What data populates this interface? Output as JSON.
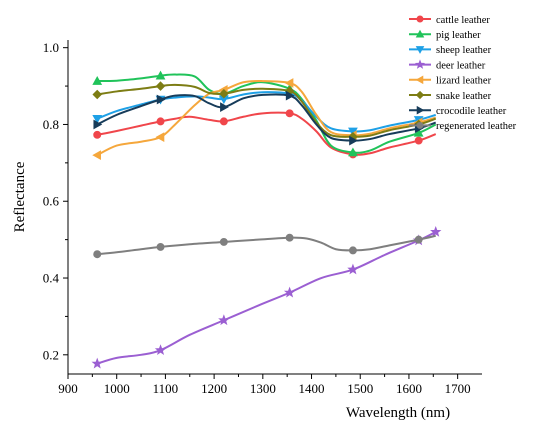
{
  "chart_data": {
    "type": "line",
    "title": "",
    "xlabel": "Wavelength (nm)",
    "ylabel": "Reflectance",
    "xlim": [
      900,
      1750
    ],
    "ylim": [
      0.15,
      1.02
    ],
    "xticks": [
      900,
      1000,
      1100,
      1200,
      1300,
      1400,
      1500,
      1600,
      1700
    ],
    "yticks": [
      0.2,
      0.4,
      0.6,
      0.8,
      1.0
    ],
    "ytick_labels": [
      "0.2",
      "0.4",
      "0.6",
      "0.8",
      "1.0"
    ],
    "grid": false,
    "legend_position": "top-right",
    "series": [
      {
        "name": "cattle leather",
        "color": "#f0464b",
        "marker": "circle",
        "x": [
          960,
          1000,
          1050,
          1090,
          1120,
          1150,
          1190,
          1220,
          1260,
          1300,
          1355,
          1380,
          1410,
          1440,
          1485,
          1520,
          1560,
          1620,
          1655
        ],
        "y": [
          0.773,
          0.783,
          0.797,
          0.808,
          0.815,
          0.82,
          0.812,
          0.808,
          0.82,
          0.829,
          0.829,
          0.815,
          0.782,
          0.74,
          0.722,
          0.725,
          0.74,
          0.758,
          0.775
        ],
        "markers_x": [
          960,
          1090,
          1220,
          1355,
          1485,
          1620
        ]
      },
      {
        "name": "pig leather",
        "color": "#20c35a",
        "marker": "triangle-up",
        "x": [
          960,
          1000,
          1050,
          1090,
          1120,
          1160,
          1190,
          1220,
          1260,
          1300,
          1355,
          1380,
          1410,
          1440,
          1485,
          1520,
          1560,
          1620,
          1655
        ],
        "y": [
          0.913,
          0.914,
          0.92,
          0.927,
          0.93,
          0.925,
          0.89,
          0.88,
          0.9,
          0.91,
          0.893,
          0.866,
          0.81,
          0.745,
          0.727,
          0.732,
          0.755,
          0.778,
          0.8
        ],
        "markers_x": [
          960,
          1090,
          1220,
          1355,
          1485,
          1620
        ]
      },
      {
        "name": "sheep leather",
        "color": "#1ea0e6",
        "marker": "triangle-down",
        "x": [
          960,
          1000,
          1050,
          1090,
          1120,
          1160,
          1190,
          1220,
          1260,
          1300,
          1355,
          1380,
          1410,
          1440,
          1485,
          1520,
          1560,
          1620,
          1655
        ],
        "y": [
          0.815,
          0.835,
          0.852,
          0.865,
          0.87,
          0.873,
          0.87,
          0.866,
          0.878,
          0.884,
          0.88,
          0.862,
          0.82,
          0.79,
          0.782,
          0.785,
          0.797,
          0.812,
          0.825
        ],
        "markers_x": [
          960,
          1090,
          1220,
          1355,
          1485,
          1620
        ]
      },
      {
        "name": "deer leather",
        "color": "#9b5fd2",
        "marker": "star",
        "x": [
          960,
          1000,
          1050,
          1090,
          1150,
          1220,
          1290,
          1355,
          1420,
          1485,
          1550,
          1620,
          1655
        ],
        "y": [
          0.177,
          0.192,
          0.2,
          0.212,
          0.252,
          0.29,
          0.328,
          0.362,
          0.4,
          0.422,
          0.46,
          0.498,
          0.52
        ],
        "markers_x": [
          960,
          1090,
          1220,
          1355,
          1485,
          1620,
          1655
        ]
      },
      {
        "name": "lizard leather",
        "color": "#f5a73c",
        "marker": "triangle-left",
        "x": [
          960,
          1000,
          1050,
          1090,
          1120,
          1160,
          1190,
          1220,
          1260,
          1300,
          1355,
          1380,
          1410,
          1440,
          1485,
          1520,
          1560,
          1620,
          1655
        ],
        "y": [
          0.72,
          0.745,
          0.755,
          0.767,
          0.8,
          0.85,
          0.88,
          0.89,
          0.91,
          0.913,
          0.908,
          0.885,
          0.825,
          0.78,
          0.772,
          0.776,
          0.79,
          0.805,
          0.818
        ],
        "markers_x": [
          960,
          1090,
          1220,
          1355,
          1485,
          1620
        ]
      },
      {
        "name": "snake leather",
        "color": "#7d7d14",
        "marker": "diamond",
        "x": [
          960,
          1000,
          1050,
          1090,
          1120,
          1160,
          1190,
          1220,
          1260,
          1300,
          1355,
          1380,
          1410,
          1440,
          1485,
          1520,
          1560,
          1620,
          1655
        ],
        "y": [
          0.878,
          0.886,
          0.893,
          0.9,
          0.903,
          0.898,
          0.882,
          0.88,
          0.89,
          0.893,
          0.887,
          0.86,
          0.805,
          0.772,
          0.768,
          0.771,
          0.785,
          0.8,
          0.815
        ],
        "markers_x": [
          960,
          1090,
          1220,
          1355,
          1485,
          1620
        ]
      },
      {
        "name": "crocodile leather",
        "color": "#173c5a",
        "marker": "triangle-right",
        "x": [
          960,
          1000,
          1050,
          1090,
          1120,
          1160,
          1190,
          1220,
          1260,
          1300,
          1355,
          1380,
          1410,
          1440,
          1485,
          1520,
          1560,
          1620,
          1655
        ],
        "y": [
          0.8,
          0.825,
          0.848,
          0.865,
          0.875,
          0.874,
          0.855,
          0.845,
          0.868,
          0.877,
          0.875,
          0.85,
          0.8,
          0.765,
          0.758,
          0.762,
          0.775,
          0.79,
          0.805
        ],
        "markers_x": [
          960,
          1090,
          1220,
          1355,
          1485,
          1620
        ]
      },
      {
        "name": "regenerated leather",
        "color": "#7f7f7f",
        "marker": "circle",
        "x": [
          960,
          1000,
          1050,
          1090,
          1150,
          1220,
          1290,
          1355,
          1390,
          1420,
          1450,
          1485,
          1520,
          1560,
          1620,
          1655
        ],
        "y": [
          0.462,
          0.467,
          0.475,
          0.481,
          0.488,
          0.494,
          0.5,
          0.505,
          0.503,
          0.492,
          0.475,
          0.472,
          0.475,
          0.485,
          0.5,
          0.51
        ],
        "markers_x": [
          960,
          1090,
          1220,
          1355,
          1485,
          1620
        ]
      }
    ]
  }
}
